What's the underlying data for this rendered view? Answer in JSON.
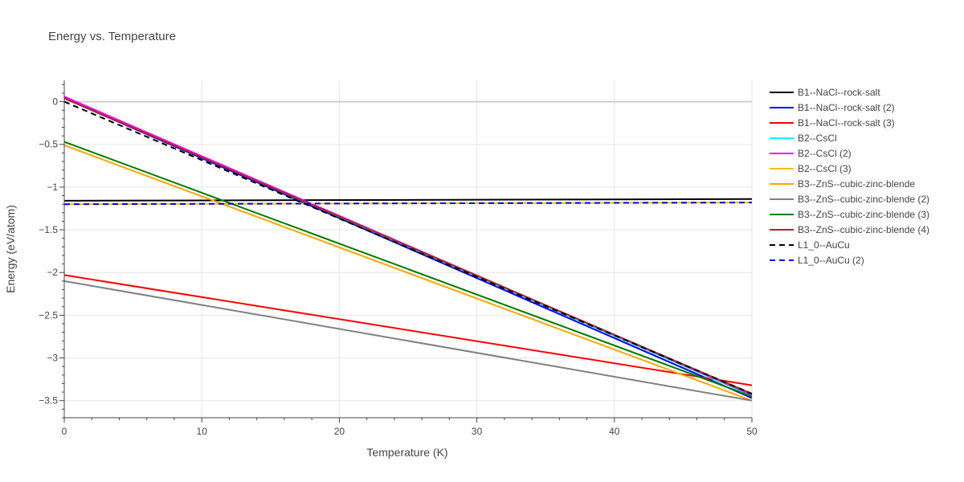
{
  "chart_data": {
    "type": "line",
    "title": "Energy vs. Temperature",
    "xlabel": "Temperature (K)",
    "ylabel": "Energy (eV/atom)",
    "xlim": [
      0,
      50
    ],
    "ylim": [
      -3.7,
      0.25
    ],
    "xticks": [
      0,
      10,
      20,
      30,
      40,
      50
    ],
    "yticks": [
      0,
      -0.5,
      -1,
      -1.5,
      -2,
      -2.5,
      -3,
      -3.5
    ],
    "xtick_labels": [
      "0",
      "10",
      "20",
      "30",
      "40",
      "50"
    ],
    "ytick_labels": [
      "0",
      "−0.5",
      "−1",
      "−1.5",
      "−2",
      "−2.5",
      "−3",
      "−3.5"
    ],
    "grid": true,
    "legend_position": "right",
    "series": [
      {
        "name": "B1--NaCl--rock-salt",
        "color": "#000000",
        "dash": "solid",
        "x": [
          0,
          50
        ],
        "y": [
          -1.16,
          -1.14
        ]
      },
      {
        "name": "B1--NaCl--rock-salt (2)",
        "color": "#0000ff",
        "dash": "solid",
        "x": [
          0,
          50
        ],
        "y": [
          0.04,
          -3.47
        ]
      },
      {
        "name": "B1--NaCl--rock-salt (3)",
        "color": "#ff0000",
        "dash": "solid",
        "x": [
          0,
          50
        ],
        "y": [
          -2.03,
          -3.32
        ]
      },
      {
        "name": "B2--CsCl",
        "color": "#00ffff",
        "dash": "solid",
        "x": [
          0,
          50
        ],
        "y": [
          0.05,
          -3.44
        ]
      },
      {
        "name": "B2--CsCl (2)",
        "color": "#ff00ff",
        "dash": "solid",
        "x": [
          0,
          50
        ],
        "y": [
          0.06,
          -3.43
        ]
      },
      {
        "name": "B2--CsCl (3)",
        "color": "#f0c000",
        "dash": "solid",
        "x": [
          0,
          50
        ],
        "y": [
          -1.2,
          -1.18
        ]
      },
      {
        "name": "B3--ZnS--cubic-zinc-blende",
        "color": "#ffa500",
        "dash": "solid",
        "x": [
          0,
          50
        ],
        "y": [
          -0.51,
          -3.5
        ]
      },
      {
        "name": "B3--ZnS--cubic-zinc-blende (2)",
        "color": "#808080",
        "dash": "solid",
        "x": [
          0,
          50
        ],
        "y": [
          -2.1,
          -3.5
        ]
      },
      {
        "name": "B3--ZnS--cubic-zinc-blende (3)",
        "color": "#008000",
        "dash": "solid",
        "x": [
          0,
          50
        ],
        "y": [
          -0.47,
          -3.45
        ]
      },
      {
        "name": "B3--ZnS--cubic-zinc-blende (4)",
        "color": "#a52a2a",
        "dash": "solid",
        "x": [
          0,
          50
        ],
        "y": [
          0.04,
          -3.42
        ]
      },
      {
        "name": "L1_0--AuCu",
        "color": "#000000",
        "dash": "dash",
        "x": [
          0,
          50
        ],
        "y": [
          0.0,
          -3.42
        ]
      },
      {
        "name": "L1_0--AuCu (2)",
        "color": "#0000ff",
        "dash": "dash",
        "x": [
          0,
          50
        ],
        "y": [
          -1.2,
          -1.18
        ]
      }
    ]
  }
}
